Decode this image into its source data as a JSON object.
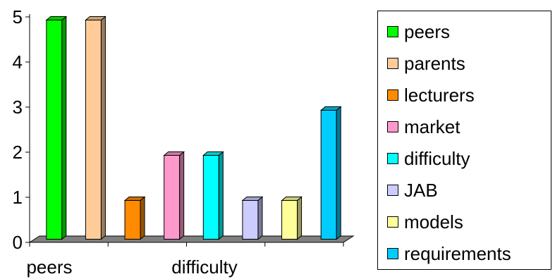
{
  "chart_data": {
    "type": "bar",
    "categories": [
      "peers",
      "parents",
      "lecturers",
      "market",
      "difficulty",
      "JAB",
      "models",
      "requirements"
    ],
    "values": [
      5,
      5,
      1,
      2,
      2,
      1,
      1,
      3
    ],
    "ylim": [
      0,
      5
    ],
    "yticks": [
      "0",
      "1",
      "2",
      "3",
      "4",
      "5"
    ],
    "xtick_labels": [
      "peers",
      "",
      "",
      "",
      "difficulty",
      "",
      "",
      ""
    ],
    "colors": [
      "#00FF00",
      "#FFCC99",
      "#FF8C00",
      "#FF99CC",
      "#00FFFF",
      "#CCCCFF",
      "#FFFF99",
      "#00CCFF"
    ],
    "legend_position": "right",
    "grid": false,
    "style": "3d-bar"
  },
  "legend": {
    "items": [
      {
        "label": "peers",
        "color": "#00FF00"
      },
      {
        "label": "parents",
        "color": "#FFCC99"
      },
      {
        "label": "lecturers",
        "color": "#FF8C00"
      },
      {
        "label": "market",
        "color": "#FF99CC"
      },
      {
        "label": "difficulty",
        "color": "#00FFFF"
      },
      {
        "label": "JAB",
        "color": "#CCCCFF"
      },
      {
        "label": "models",
        "color": "#FFFF99"
      },
      {
        "label": "requirements",
        "color": "#00CCFF"
      }
    ]
  }
}
